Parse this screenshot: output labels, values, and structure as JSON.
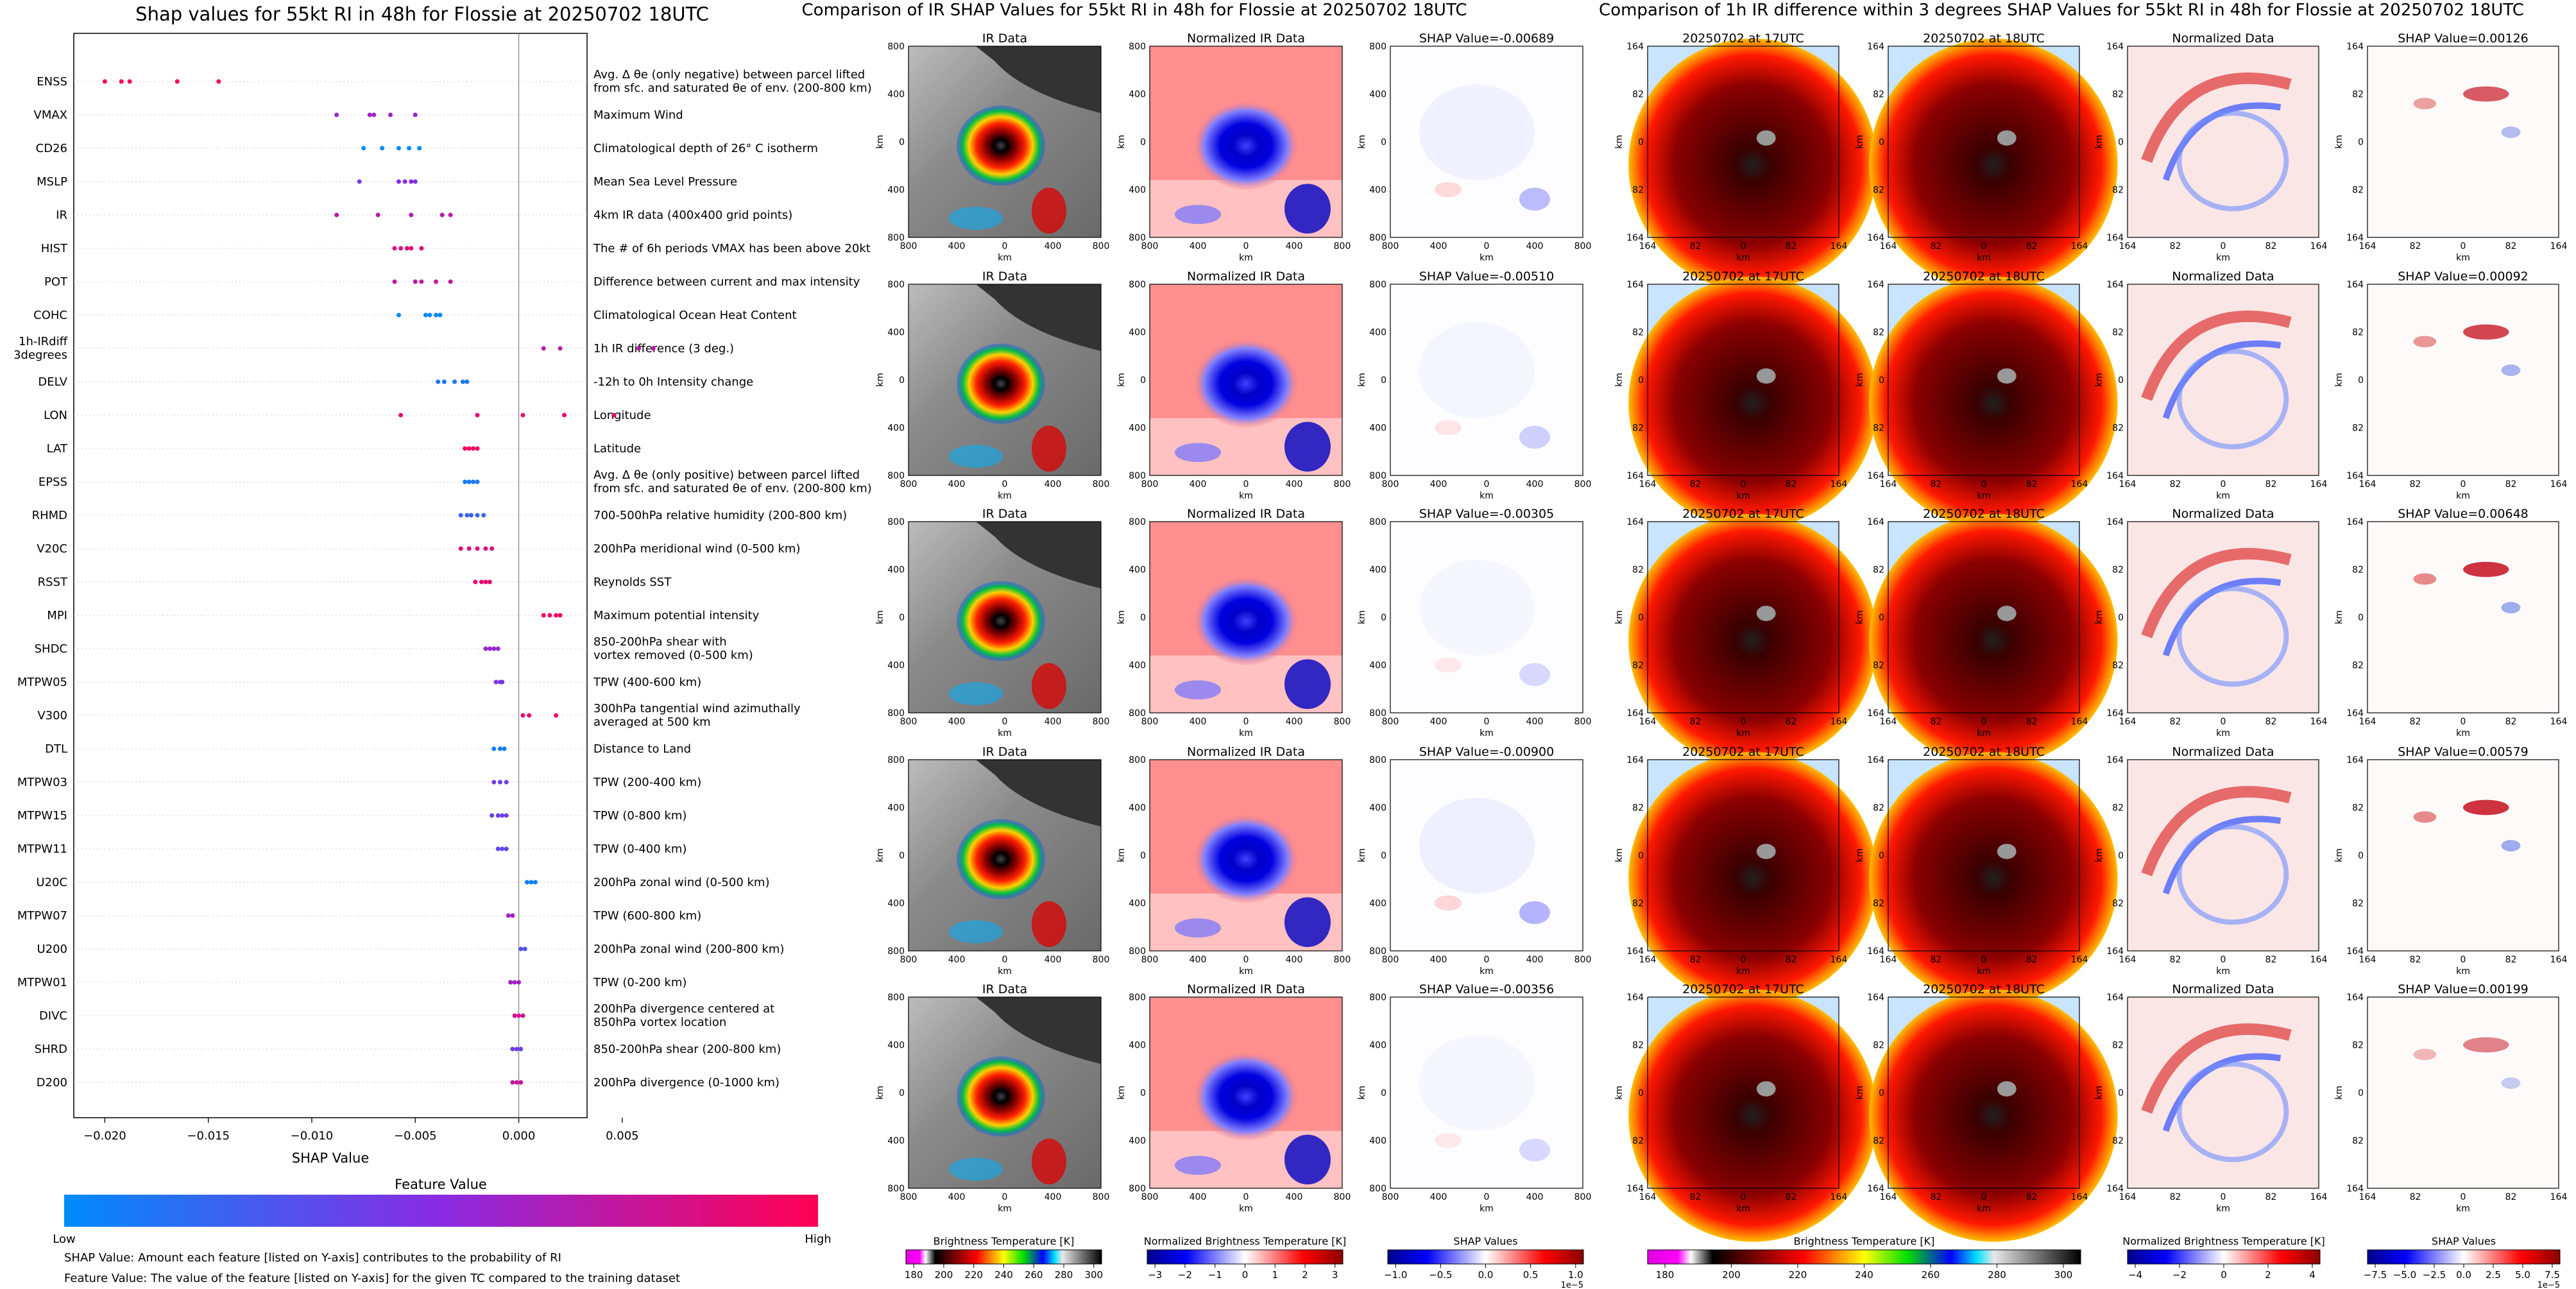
{
  "shap_panel": {
    "title": "Shap values for 55kt RI in 48h for Flossie at 20250702 18UTC",
    "xlabel": "SHAP Value",
    "colorbar_title": "Feature Value",
    "low_label": "Low",
    "high_label": "High",
    "footnote_1": "SHAP Value: Amount each feature [listed on Y-axis] contributes to the probability of RI",
    "footnote_2": "Feature Value: The value of the feature [listed on Y-axis] for the given TC compared to the training dataset"
  },
  "ir_panel": {
    "title": "Comparison of IR SHAP Values for 55kt RI in 48h for Flossie at 20250702 18UTC",
    "col_titles": [
      "IR Data",
      "Normalized IR Data"
    ],
    "shap_titles": [
      "SHAP Value=-0.00689",
      "SHAP Value=-0.00510",
      "SHAP Value=-0.00305",
      "SHAP Value=-0.00900",
      "SHAP Value=-0.00356"
    ],
    "ticks": [
      "800",
      "400",
      "0",
      "400",
      "800"
    ],
    "axis_label": "km",
    "colorbars": [
      {
        "label": "Brightness Temperature [K]",
        "ticks": [
          "180",
          "200",
          "220",
          "240",
          "260",
          "280",
          "300"
        ]
      },
      {
        "label": "Normalized Brightness Temperature [K]",
        "ticks": [
          "−3",
          "−2",
          "−1",
          "0",
          "1",
          "2",
          "3"
        ]
      },
      {
        "label": "SHAP Values",
        "ticks": [
          "−1.0",
          "−0.5",
          "0.0",
          "0.5",
          "1.0"
        ],
        "exponent": "1e−5"
      }
    ]
  },
  "diff_panel": {
    "title": "Comparison of 1h IR difference within 3 degrees SHAP Values for 55kt RI in 48h for Flossie at 20250702 18UTC",
    "col_titles": [
      "20250702 at 17UTC",
      "20250702 at 18UTC",
      "Normalized Data"
    ],
    "shap_titles": [
      "SHAP Value=0.00126",
      "SHAP Value=0.00092",
      "SHAP Value=0.00648",
      "SHAP Value=0.00579",
      "SHAP Value=0.00199"
    ],
    "ticks": [
      "164",
      "82",
      "0",
      "82",
      "164"
    ],
    "axis_label": "km",
    "colorbars": [
      {
        "label": "Brightness Temperature [K]",
        "ticks": [
          "180",
          "200",
          "220",
          "240",
          "260",
          "280",
          "300"
        ]
      },
      {
        "label": "Normalized Brightness Temperature [K]",
        "ticks": [
          "−4",
          "−2",
          "0",
          "2",
          "4"
        ]
      },
      {
        "label": "SHAP Values",
        "ticks": [
          "−7.5",
          "−5.0",
          "−2.5",
          "0.0",
          "2.5",
          "5.0",
          "7.5"
        ],
        "exponent": "1e−5"
      }
    ]
  },
  "colors": {
    "low": "#008bfb",
    "mid": "#8a2be2",
    "high": "#ff0052"
  },
  "chart_data": {
    "type": "scatter",
    "xlim": [
      -0.0215,
      0.0033
    ],
    "xticks": [
      -0.02,
      -0.015,
      -0.01,
      -0.005,
      0.0,
      0.005
    ],
    "xtick_labels": [
      "−0.020",
      "−0.015",
      "−0.010",
      "−0.005",
      "0.000",
      "0.005"
    ],
    "features": [
      {
        "name": "ENSS",
        "desc": "Avg. Δ θe (only negative) between parcel lifted|from sfc. and saturated θe of env. (200-800 km)",
        "points": [
          [
            -0.02,
            1
          ],
          [
            -0.0192,
            1
          ],
          [
            -0.0188,
            1
          ],
          [
            -0.0165,
            1
          ],
          [
            -0.0145,
            1
          ]
        ]
      },
      {
        "name": "VMAX",
        "desc": "Maximum Wind",
        "points": [
          [
            -0.0088,
            0.55
          ],
          [
            -0.0072,
            0.6
          ],
          [
            -0.007,
            0.6
          ],
          [
            -0.0062,
            0.6
          ],
          [
            -0.005,
            0.55
          ]
        ]
      },
      {
        "name": "CD26",
        "desc": "Climatological depth of 26° C isotherm",
        "points": [
          [
            -0.0075,
            0
          ],
          [
            -0.0066,
            0
          ],
          [
            -0.0058,
            0
          ],
          [
            -0.0053,
            0
          ],
          [
            -0.0048,
            0
          ]
        ]
      },
      {
        "name": "MSLP",
        "desc": "Mean Sea Level Pressure",
        "points": [
          [
            -0.0077,
            0.4
          ],
          [
            -0.0058,
            0.5
          ],
          [
            -0.0055,
            0.5
          ],
          [
            -0.0052,
            0.5
          ],
          [
            -0.005,
            0.45
          ]
        ]
      },
      {
        "name": "IR",
        "desc": "4km IR data (400x400 grid points)",
        "points": [
          [
            -0.0088,
            0.7
          ],
          [
            -0.0068,
            0.7
          ],
          [
            -0.0052,
            0.7
          ],
          [
            -0.0037,
            0.7
          ],
          [
            -0.0033,
            0.7
          ]
        ]
      },
      {
        "name": "HIST",
        "desc": "The # of 6h periods VMAX has been above 20kt",
        "points": [
          [
            -0.006,
            0.85
          ],
          [
            -0.0057,
            0.85
          ],
          [
            -0.0054,
            0.85
          ],
          [
            -0.0052,
            0.85
          ],
          [
            -0.0047,
            0.85
          ]
        ]
      },
      {
        "name": "POT",
        "desc": "Difference between current and max intensity",
        "points": [
          [
            -0.006,
            0.75
          ],
          [
            -0.005,
            0.7
          ],
          [
            -0.0047,
            0.7
          ],
          [
            -0.004,
            0.7
          ],
          [
            -0.0033,
            0.75
          ]
        ]
      },
      {
        "name": "COHC",
        "desc": "Climatological Ocean Heat Content",
        "points": [
          [
            -0.0058,
            0
          ],
          [
            -0.0045,
            0
          ],
          [
            -0.0043,
            0
          ],
          [
            -0.004,
            0
          ],
          [
            -0.0038,
            0
          ]
        ]
      },
      {
        "name": "1h-IRdiff|3degrees",
        "desc": "1h IR difference (3 deg.)",
        "points": [
          [
            0.0012,
            0.7
          ],
          [
            0.002,
            0.7
          ],
          [
            0.0058,
            0.7
          ],
          [
            0.0065,
            0.7
          ]
        ]
      },
      {
        "name": "DELV",
        "desc": "-12h to 0h Intensity change",
        "points": [
          [
            -0.0039,
            0.1
          ],
          [
            -0.0036,
            0.1
          ],
          [
            -0.0031,
            0.1
          ],
          [
            -0.0027,
            0.1
          ],
          [
            -0.0025,
            0.1
          ]
        ]
      },
      {
        "name": "LON",
        "desc": "Longitude",
        "points": [
          [
            -0.0057,
            0.9
          ],
          [
            -0.002,
            0.9
          ],
          [
            0.0002,
            0.9
          ],
          [
            0.0022,
            0.9
          ],
          [
            0.0046,
            0.9
          ]
        ]
      },
      {
        "name": "LAT",
        "desc": "Latitude",
        "points": [
          [
            -0.0026,
            0.95
          ],
          [
            -0.0024,
            0.95
          ],
          [
            -0.0022,
            0.95
          ],
          [
            -0.002,
            0.95
          ]
        ]
      },
      {
        "name": "EPSS",
        "desc": "Avg. Δ θe (only positive) between parcel lifted|from sfc. and saturated θe of env. (200-800 km)",
        "points": [
          [
            -0.0026,
            0.1
          ],
          [
            -0.0024,
            0.1
          ],
          [
            -0.0022,
            0.1
          ],
          [
            -0.002,
            0.1
          ]
        ]
      },
      {
        "name": "RHMD",
        "desc": "700-500hPa relative humidity (200-800 km)",
        "points": [
          [
            -0.0028,
            0.2
          ],
          [
            -0.0025,
            0.2
          ],
          [
            -0.0023,
            0.2
          ],
          [
            -0.002,
            0.2
          ],
          [
            -0.0017,
            0.2
          ]
        ]
      },
      {
        "name": "V20C",
        "desc": "200hPa meridional wind (0-500 km)",
        "points": [
          [
            -0.0028,
            0.85
          ],
          [
            -0.0024,
            0.85
          ],
          [
            -0.002,
            0.85
          ],
          [
            -0.0016,
            0.85
          ],
          [
            -0.0013,
            0.85
          ]
        ]
      },
      {
        "name": "RSST",
        "desc": "Reynolds SST",
        "points": [
          [
            -0.0021,
            0.9
          ],
          [
            -0.0018,
            0.9
          ],
          [
            -0.0016,
            0.9
          ],
          [
            -0.0014,
            0.9
          ]
        ]
      },
      {
        "name": "MPI",
        "desc": "Maximum potential intensity",
        "points": [
          [
            0.0012,
            0.95
          ],
          [
            0.0015,
            0.95
          ],
          [
            0.0018,
            0.95
          ],
          [
            0.002,
            0.95
          ]
        ]
      },
      {
        "name": "SHDC",
        "desc": "850-200hPa shear with|vortex removed (0-500 km)",
        "points": [
          [
            -0.0016,
            0.55
          ],
          [
            -0.0014,
            0.55
          ],
          [
            -0.0012,
            0.55
          ],
          [
            -0.001,
            0.55
          ]
        ]
      },
      {
        "name": "MTPW05",
        "desc": "TPW (400-600 km)",
        "points": [
          [
            -0.0011,
            0.45
          ],
          [
            -0.0009,
            0.45
          ],
          [
            -0.0008,
            0.45
          ]
        ]
      },
      {
        "name": "V300",
        "desc": "300hPa tangential wind azimuthally|averaged at 500 km",
        "points": [
          [
            0.0002,
            0.9
          ],
          [
            0.0005,
            0.9
          ],
          [
            0.0018,
            0.9
          ]
        ]
      },
      {
        "name": "DTL",
        "desc": "Distance to Land",
        "points": [
          [
            -0.0012,
            0.05
          ],
          [
            -0.0009,
            0.05
          ],
          [
            -0.0007,
            0.05
          ]
        ]
      },
      {
        "name": "MTPW03",
        "desc": "TPW (200-400 km)",
        "points": [
          [
            -0.0012,
            0.4
          ],
          [
            -0.0009,
            0.4
          ],
          [
            -0.0006,
            0.4
          ]
        ]
      },
      {
        "name": "MTPW15",
        "desc": "TPW (0-800 km)",
        "points": [
          [
            -0.0013,
            0.4
          ],
          [
            -0.001,
            0.4
          ],
          [
            -0.0008,
            0.4
          ],
          [
            -0.0006,
            0.4
          ]
        ]
      },
      {
        "name": "MTPW11",
        "desc": "TPW (0-400 km)",
        "points": [
          [
            -0.001,
            0.35
          ],
          [
            -0.0008,
            0.35
          ],
          [
            -0.0006,
            0.35
          ]
        ]
      },
      {
        "name": "U20C",
        "desc": "200hPa zonal wind (0-500 km)",
        "points": [
          [
            0.0004,
            0.05
          ],
          [
            0.0006,
            0.05
          ],
          [
            0.0008,
            0.05
          ]
        ]
      },
      {
        "name": "MTPW07",
        "desc": "TPW (600-800 km)",
        "points": [
          [
            -0.0005,
            0.6
          ],
          [
            -0.0003,
            0.6
          ]
        ]
      },
      {
        "name": "U200",
        "desc": "200hPa zonal wind (200-800 km)",
        "points": [
          [
            0.0001,
            0.3
          ],
          [
            0.0003,
            0.3
          ]
        ]
      },
      {
        "name": "MTPW01",
        "desc": "TPW (0-200 km)",
        "points": [
          [
            -0.0004,
            0.6
          ],
          [
            -0.0002,
            0.6
          ],
          [
            0.0,
            0.6
          ]
        ]
      },
      {
        "name": "DIVC",
        "desc": "200hPa divergence centered at|850hPa vortex location",
        "points": [
          [
            -0.0002,
            0.8
          ],
          [
            0.0,
            0.8
          ],
          [
            0.0002,
            0.8
          ]
        ]
      },
      {
        "name": "SHRD",
        "desc": "850-200hPa shear (200-800 km)",
        "points": [
          [
            -0.0003,
            0.4
          ],
          [
            -0.0001,
            0.4
          ],
          [
            0.0001,
            0.4
          ]
        ]
      },
      {
        "name": "D200",
        "desc": "200hPa divergence (0-1000 km)",
        "points": [
          [
            -0.0003,
            0.75
          ],
          [
            -0.0001,
            0.75
          ],
          [
            0.0001,
            0.75
          ]
        ]
      }
    ]
  }
}
